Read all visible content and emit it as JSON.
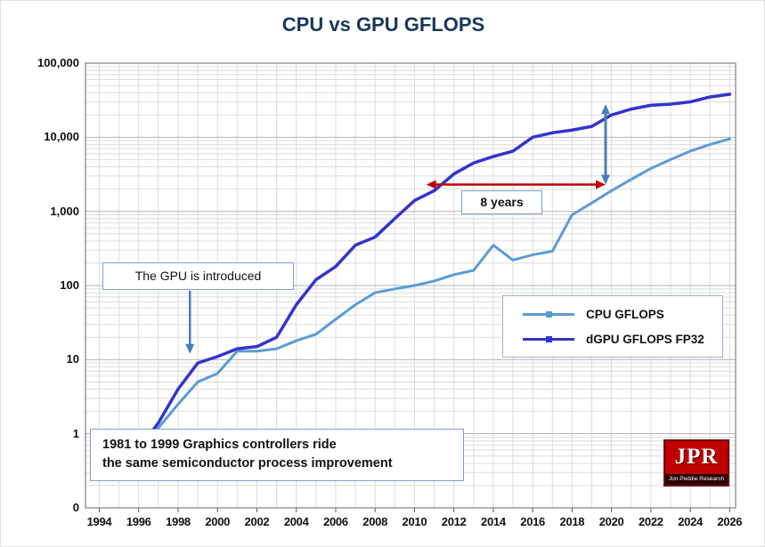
{
  "title": "CPU vs GPU GFLOPS",
  "annotations": {
    "gpu_introduced": "The GPU is introduced",
    "eight_years": "8 years",
    "bottom_note_line1": "1981 to 1999 Graphics controllers ride",
    "bottom_note_line2": "the same semiconductor process improvement"
  },
  "legend": {
    "cpu": "CPU GFLOPS",
    "gpu": "dGPU GFLOPS FP32"
  },
  "logo": {
    "text": "JPR",
    "subtext": "Jon Peddie Research"
  },
  "colors": {
    "title": "#17375E",
    "cpu_line": "#5B9BD5",
    "gpu_line": "#3333CC",
    "red_arrow": "#C00000",
    "blue_arrow": "#4A7EBB",
    "grid_minor": "#DCDCDC",
    "grid_major": "#B3B3B3",
    "plot_border": "#808080",
    "box_border": "#7D9EC8",
    "logo_red": "#C00000"
  },
  "chart_data": {
    "type": "line",
    "title": "CPU vs GPU GFLOPS",
    "y_scale": "log",
    "grid": true,
    "legend_position": "middle-right",
    "y_ticks": [
      "100,000",
      "10,000",
      "1,000",
      "100",
      "10",
      "1",
      "0"
    ],
    "ylim_exponents": [
      -1,
      5
    ],
    "x_ticks": [
      1994,
      1996,
      1998,
      2000,
      2002,
      2004,
      2006,
      2008,
      2010,
      2012,
      2014,
      2016,
      2018,
      2020,
      2022,
      2024,
      2026
    ],
    "x_range": [
      1994,
      2026
    ],
    "series": [
      {
        "name": "CPU GFLOPS",
        "color": "#5B9BD5",
        "width": 3,
        "x": [
          1996.7,
          1997,
          1998,
          1999,
          2000,
          2001,
          2002,
          2003,
          2004,
          2005,
          2006,
          2007,
          2008,
          2009,
          2010,
          2011,
          2012,
          2013,
          2014,
          2015,
          2016,
          2017,
          2018,
          2019,
          2020,
          2021,
          2022,
          2023,
          2024,
          2025,
          2026
        ],
        "values": [
          1,
          1.2,
          2.5,
          5,
          6.5,
          13,
          13,
          14,
          18,
          22,
          35,
          55,
          80,
          90,
          100,
          115,
          140,
          160,
          350,
          220,
          260,
          290,
          900,
          1300,
          1900,
          2700,
          3800,
          5000,
          6500,
          8000,
          9500
        ]
      },
      {
        "name": "dGPU GFLOPS FP32",
        "color": "#3333CC",
        "width": 3.5,
        "x": [
          1996.7,
          1997,
          1998,
          1999,
          2000,
          2001,
          2002,
          2003,
          2004,
          2005,
          2006,
          2007,
          2008,
          2009,
          2010,
          2011,
          2012,
          2013,
          2014,
          2015,
          2016,
          2017,
          2018,
          2019,
          2020,
          2021,
          2022,
          2023,
          2024,
          2025,
          2026
        ],
        "values": [
          1.1,
          1.4,
          4,
          9,
          11,
          14,
          15,
          20,
          55,
          120,
          180,
          350,
          450,
          800,
          1400,
          1900,
          3200,
          4500,
          5500,
          6500,
          10000,
          11500,
          12500,
          14000,
          20000,
          24000,
          27000,
          28000,
          30000,
          35000,
          38000
        ]
      }
    ],
    "annotations": [
      {
        "type": "double-arrow-horizontal",
        "label": "8 years",
        "color": "#C00000",
        "y_value": 2300,
        "x_from": 2010.6,
        "x_to": 2019.7
      },
      {
        "type": "double-arrow-vertical",
        "color": "#4A7EBB",
        "x_year": 2019.7,
        "value_from": 2300,
        "value_to": 28000
      },
      {
        "type": "arrow-down",
        "label": "The GPU is introduced",
        "color": "#4A7EBB",
        "x_year": 1998.6,
        "points_to_value": 12
      }
    ]
  }
}
